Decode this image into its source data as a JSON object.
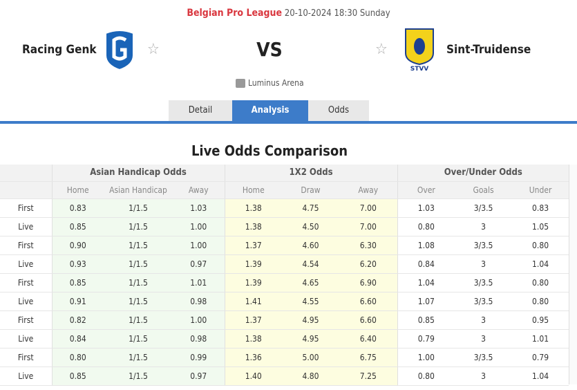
{
  "header": {
    "league": "Belgian Pro League",
    "datetime": "20-10-2024 18:30 Sunday",
    "home_team": "Racing Genk",
    "away_team": "Sint-Truidense",
    "vs": "VS",
    "venue": "Luminus Arena",
    "home_logo_text": "GENK",
    "away_logo_text": "STVV"
  },
  "tabs": [
    {
      "label": "Detail"
    },
    {
      "label": "Analysis",
      "active": true
    },
    {
      "label": "Odds"
    }
  ],
  "section_title": "Live Odds Comparison",
  "table": {
    "groups": [
      "Asian Handicap Odds",
      "1X2 Odds",
      "Over/Under Odds"
    ],
    "columns": [
      "Home",
      "Asian Handicap",
      "Away",
      "Home",
      "Draw",
      "Away",
      "Over",
      "Goals",
      "Under"
    ],
    "rows": [
      [
        "First",
        "0.83",
        "1/1.5",
        "1.03",
        "1.38",
        "4.75",
        "7.00",
        "1.03",
        "3/3.5",
        "0.83"
      ],
      [
        "Live",
        "0.85",
        "1/1.5",
        "1.00",
        "1.38",
        "4.50",
        "7.00",
        "0.80",
        "3",
        "1.05"
      ],
      [
        "First",
        "0.90",
        "1/1.5",
        "1.00",
        "1.37",
        "4.60",
        "6.30",
        "1.08",
        "3/3.5",
        "0.80"
      ],
      [
        "Live",
        "0.93",
        "1/1.5",
        "0.97",
        "1.39",
        "4.54",
        "6.20",
        "0.84",
        "3",
        "1.04"
      ],
      [
        "First",
        "0.85",
        "1/1.5",
        "1.01",
        "1.39",
        "4.65",
        "6.90",
        "1.04",
        "3/3.5",
        "0.80"
      ],
      [
        "Live",
        "0.91",
        "1/1.5",
        "0.98",
        "1.41",
        "4.55",
        "6.60",
        "1.07",
        "3/3.5",
        "0.80"
      ],
      [
        "First",
        "0.82",
        "1/1.5",
        "1.00",
        "1.37",
        "4.95",
        "6.60",
        "0.85",
        "3",
        "0.95"
      ],
      [
        "Live",
        "0.84",
        "1/1.5",
        "0.98",
        "1.38",
        "4.95",
        "6.40",
        "0.79",
        "3",
        "1.01"
      ],
      [
        "First",
        "0.80",
        "1/1.5",
        "0.99",
        "1.36",
        "5.00",
        "6.75",
        "1.00",
        "3/3.5",
        "0.79"
      ],
      [
        "Live",
        "0.85",
        "1/1.5",
        "0.97",
        "1.40",
        "4.80",
        "7.25",
        "0.80",
        "3",
        "1.04"
      ]
    ]
  },
  "colors": {
    "accent": "#3d7cc9",
    "league": "#d9363e",
    "ah_bg": "#f1faef",
    "x12_bg": "#fdfde0"
  }
}
